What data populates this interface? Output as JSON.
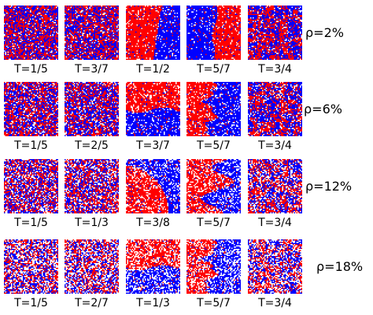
{
  "colors": {
    "spin_up": "#ff0000",
    "spin_down": "#0000ff",
    "vacancy": "#ffffff",
    "background": "#ffffff"
  },
  "rows": [
    {
      "rho_label": "ρ=2%",
      "panels": [
        {
          "label": "T=1/5",
          "pattern": "disordered"
        },
        {
          "label": "T=3/7",
          "pattern": "disordered"
        },
        {
          "label": "T=1/2",
          "pattern": "vertical_domains"
        },
        {
          "label": "T=5/7",
          "pattern": "vertical_domains_inverted"
        },
        {
          "label": "T=3/4",
          "pattern": "coarse_mixed"
        }
      ]
    },
    {
      "rho_label": "ρ=6%",
      "panels": [
        {
          "label": "T=1/5",
          "pattern": "disordered"
        },
        {
          "label": "T=2/5",
          "pattern": "disordered"
        },
        {
          "label": "T=3/7",
          "pattern": "horizontal_domains"
        },
        {
          "label": "T=5/7",
          "pattern": "rough_vertical_domains"
        },
        {
          "label": "T=3/4",
          "pattern": "coarse_mixed"
        }
      ]
    },
    {
      "rho_label": "ρ=12%",
      "panels": [
        {
          "label": "T=1/5",
          "pattern": "disordered"
        },
        {
          "label": "T=1/3",
          "pattern": "disordered"
        },
        {
          "label": "T=3/8",
          "pattern": "curved_domain"
        },
        {
          "label": "T=5/7",
          "pattern": "rough_curved_domain"
        },
        {
          "label": "T=3/4",
          "pattern": "coarse_mixed"
        }
      ]
    },
    {
      "rho_label": "ρ=18%",
      "panels": [
        {
          "label": "T=1/5",
          "pattern": "disordered"
        },
        {
          "label": "T=2/7",
          "pattern": "disordered"
        },
        {
          "label": "T=1/3",
          "pattern": "horizontal_domains"
        },
        {
          "label": "T=5/7",
          "pattern": "rough_vertical_domains"
        },
        {
          "label": "T=3/4",
          "pattern": "coarse_mixed"
        }
      ]
    }
  ]
}
